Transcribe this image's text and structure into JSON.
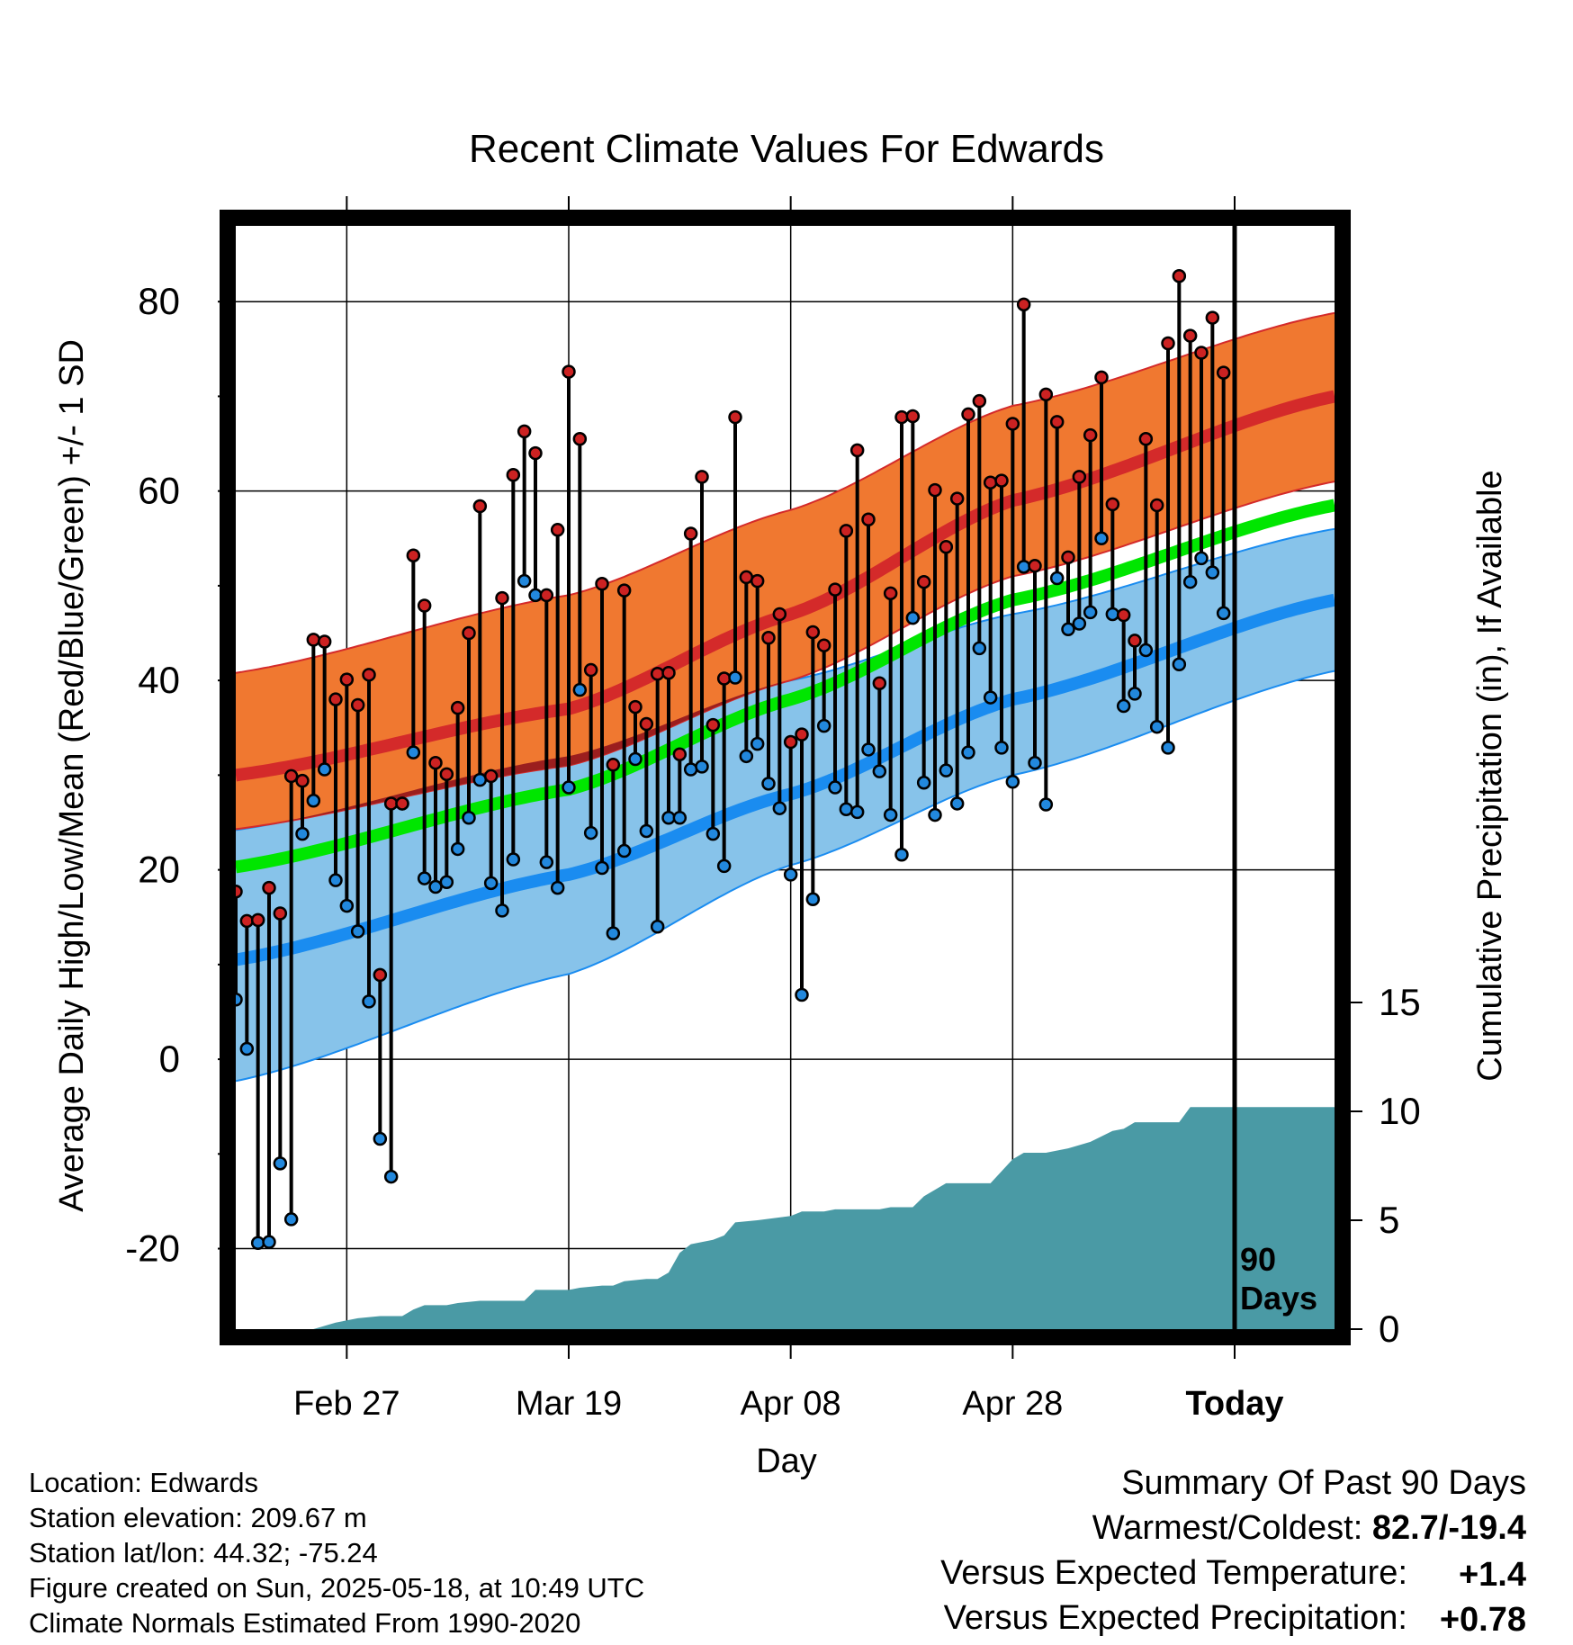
{
  "title": "Recent Climate Values For Edwards",
  "y_left_label": "Average Daily High/Low/Mean (Red/Blue/Green) +/- 1 SD",
  "y_right_label": "Cumulative Precipitation (in), If Available",
  "x_label": "Day",
  "x_ticks": [
    {
      "label": "Feb 27",
      "day": 10
    },
    {
      "label": "Mar 19",
      "day": 30
    },
    {
      "label": "Apr 08",
      "day": 50
    },
    {
      "label": "Apr 28",
      "day": 70
    },
    {
      "label": "Today",
      "day": 90
    }
  ],
  "y_left_ticks": [
    "80",
    "60",
    "40",
    "20",
    "0",
    "-20"
  ],
  "y_right_ticks": [
    "15",
    "10",
    "5",
    "0"
  ],
  "today_marker": "90\nDays",
  "today_marker_lines": [
    "90",
    "Days"
  ],
  "info": {
    "location": "Location: Edwards",
    "elevation": "Station elevation: 209.67 m",
    "latlon": "Station lat/lon: 44.32; -75.24",
    "created": "Figure created on Sun, 2025-05-18, at 10:49 UTC",
    "normals": "Climate Normals Estimated From 1990-2020"
  },
  "summary": {
    "heading": "Summary Of Past 90 Days",
    "warmest_coldest_label": "Warmest/Coldest:",
    "warmest_coldest_value": "82.7/-19.4",
    "temp_label": "Versus Expected Temperature:",
    "temp_value": "+1.4",
    "precip_label": "Versus Expected Precipitation:",
    "precip_value": "+0.78"
  },
  "colors": {
    "high_band": "#f07830",
    "high_mean": "#d42a2a",
    "low_band": "#87c3ea",
    "low_mean": "#1a8cf0",
    "mean_line": "#00e600",
    "precip": "#4a9aa5",
    "high_point": "#cc2222",
    "low_point": "#2288dd",
    "temp_value": "#d42a2a",
    "precip_value": "#22cc22"
  },
  "chart_data": {
    "type": "line",
    "x_range_days": [
      0,
      99
    ],
    "today_day": 90,
    "ylim_temp": [
      -28.5,
      88
    ],
    "ylim_precip": [
      0,
      15
    ],
    "normal_high_mean": [
      [
        0,
        30
      ],
      [
        30,
        37
      ],
      [
        50,
        47
      ],
      [
        70,
        59
      ],
      [
        99,
        70
      ]
    ],
    "normal_high_upper": [
      [
        0,
        40.8
      ],
      [
        30,
        49
      ],
      [
        50,
        58
      ],
      [
        70,
        69
      ],
      [
        99,
        78.8
      ]
    ],
    "normal_high_lower": [
      [
        0,
        24.3
      ],
      [
        30,
        31
      ],
      [
        50,
        40
      ],
      [
        70,
        51
      ],
      [
        99,
        61
      ]
    ],
    "normal_low_mean": [
      [
        0,
        10.5
      ],
      [
        30,
        19.5
      ],
      [
        50,
        28
      ],
      [
        70,
        38
      ],
      [
        99,
        48.5
      ]
    ],
    "normal_low_upper": [
      [
        0,
        24.2
      ],
      [
        30,
        32
      ],
      [
        50,
        40
      ],
      [
        70,
        47
      ],
      [
        99,
        56
      ]
    ],
    "normal_low_lower": [
      [
        0,
        -2.3
      ],
      [
        30,
        9
      ],
      [
        50,
        20.5
      ],
      [
        70,
        30
      ],
      [
        99,
        41
      ]
    ],
    "normal_mean": [
      [
        0,
        20.3
      ],
      [
        30,
        28.5
      ],
      [
        50,
        38
      ],
      [
        70,
        48.5
      ],
      [
        99,
        58.5
      ]
    ],
    "daily_high": [
      17.7,
      14.6,
      14.7,
      18.1,
      15.4,
      29.9,
      29.4,
      44.3,
      44.1,
      38,
      40.1,
      37.4,
      40.6,
      8.9,
      27,
      27,
      53.2,
      47.9,
      31.3,
      30.1,
      37.1,
      45,
      58.4,
      29.9,
      48.7,
      61.7,
      66.3,
      64,
      49,
      55.9,
      72.6,
      65.5,
      41.1,
      50.2,
      31.1,
      49.5,
      37.2,
      35.4,
      40.7,
      40.8,
      32.2,
      55.5,
      61.5,
      35.3,
      40.2,
      67.8,
      50.9,
      50.5,
      44.5,
      47,
      33.5,
      34.3,
      45.1,
      43.7,
      49.6,
      55.8,
      64.3,
      57,
      39.7,
      49.2,
      67.8,
      67.9,
      50.4,
      60.1,
      54.1,
      59.2,
      68.1,
      69.5,
      60.9,
      61.1,
      67.1,
      79.7,
      52.1,
      70.2,
      67.3,
      53,
      61.5,
      65.9,
      72,
      58.6,
      46.9,
      44.2,
      65.5,
      58.5,
      75.6,
      82.7,
      76.4,
      74.6,
      78.3,
      72.5
    ],
    "daily_low": [
      6.3,
      1.1,
      -19.4,
      -19.3,
      -11,
      -16.9,
      23.8,
      27.3,
      30.6,
      18.9,
      16.2,
      13.5,
      6.1,
      -8.4,
      -12.4,
      27,
      32.4,
      19.1,
      18.2,
      18.7,
      22.2,
      25.5,
      29.5,
      18.6,
      15.7,
      21.1,
      50.5,
      49,
      20.8,
      18.1,
      28.7,
      39,
      23.9,
      20.2,
      13.3,
      22,
      31.7,
      24.1,
      14,
      25.5,
      25.5,
      30.6,
      30.9,
      23.8,
      20.4,
      40.3,
      32,
      33.3,
      29.1,
      26.5,
      19.5,
      6.8,
      16.9,
      35.2,
      28.7,
      26.4,
      26.1,
      32.7,
      30.4,
      25.8,
      21.6,
      46.6,
      29.2,
      25.8,
      30.5,
      27,
      32.4,
      43.4,
      38.2,
      32.9,
      29.3,
      52,
      31.3,
      26.9,
      50.8,
      45.4,
      46,
      47.2,
      55,
      47,
      37.3,
      38.6,
      43.2,
      35.1,
      32.9,
      41.7,
      50.4,
      52.9,
      51.4,
      47.1
    ],
    "cumulative_precip": [
      [
        0,
        0
      ],
      [
        7,
        0
      ],
      [
        9,
        0.3
      ],
      [
        11,
        0.5
      ],
      [
        13,
        0.6
      ],
      [
        15,
        0.6
      ],
      [
        16,
        0.9
      ],
      [
        17,
        1.1
      ],
      [
        19,
        1.1
      ],
      [
        20,
        1.2
      ],
      [
        22,
        1.3
      ],
      [
        26,
        1.3
      ],
      [
        27,
        1.8
      ],
      [
        30,
        1.8
      ],
      [
        31,
        1.9
      ],
      [
        33,
        2
      ],
      [
        34,
        2
      ],
      [
        35,
        2.2
      ],
      [
        37,
        2.3
      ],
      [
        38,
        2.3
      ],
      [
        39,
        2.6
      ],
      [
        40,
        3.5
      ],
      [
        41,
        3.9
      ],
      [
        43,
        4.1
      ],
      [
        44,
        4.3
      ],
      [
        45,
        4.9
      ],
      [
        47,
        5
      ],
      [
        50,
        5.2
      ],
      [
        51,
        5.4
      ],
      [
        53,
        5.4
      ],
      [
        54,
        5.5
      ],
      [
        58,
        5.5
      ],
      [
        59,
        5.6
      ],
      [
        61,
        5.6
      ],
      [
        62,
        6.1
      ],
      [
        64,
        6.7
      ],
      [
        68,
        6.7
      ],
      [
        70,
        7.8
      ],
      [
        71,
        8.1
      ],
      [
        73,
        8.1
      ],
      [
        75,
        8.3
      ],
      [
        77,
        8.6
      ],
      [
        79,
        9.1
      ],
      [
        80,
        9.2
      ],
      [
        81,
        9.5
      ],
      [
        85,
        9.5
      ],
      [
        86,
        10.2
      ],
      [
        99,
        10.2
      ]
    ]
  }
}
